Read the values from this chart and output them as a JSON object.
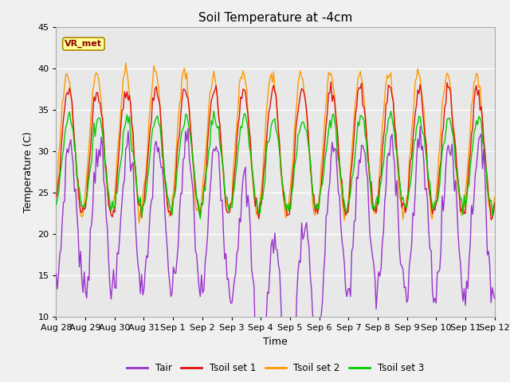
{
  "title": "Soil Temperature at -4cm",
  "xlabel": "Time",
  "ylabel": "Temperature (C)",
  "ylim": [
    10,
    45
  ],
  "fig_bg": "#f0f0f0",
  "plot_bg": "#e8e8e8",
  "colors": {
    "Tair": "#9933cc",
    "Tsoil_set1": "#dd1111",
    "Tsoil_set2": "#ff9900",
    "Tsoil_set3": "#00cc00"
  },
  "legend_labels": [
    "Tair",
    "Tsoil set 1",
    "Tsoil set 2",
    "Tsoil set 3"
  ],
  "annotation_text": "VR_met",
  "annotation_bg": "#ffff99",
  "annotation_border": "#cc8800",
  "tick_labels": [
    "Aug 28",
    "Aug 29",
    "Aug 30",
    "Aug 31",
    "Sep 1",
    "Sep 2",
    "Sep 3",
    "Sep 4",
    "Sep 5",
    "Sep 6",
    "Sep 7",
    "Sep 8",
    "Sep 9",
    "Sep 10",
    "Sep 11",
    "Sep 12"
  ],
  "yticks": [
    10,
    15,
    20,
    25,
    30,
    35,
    40,
    45
  ]
}
